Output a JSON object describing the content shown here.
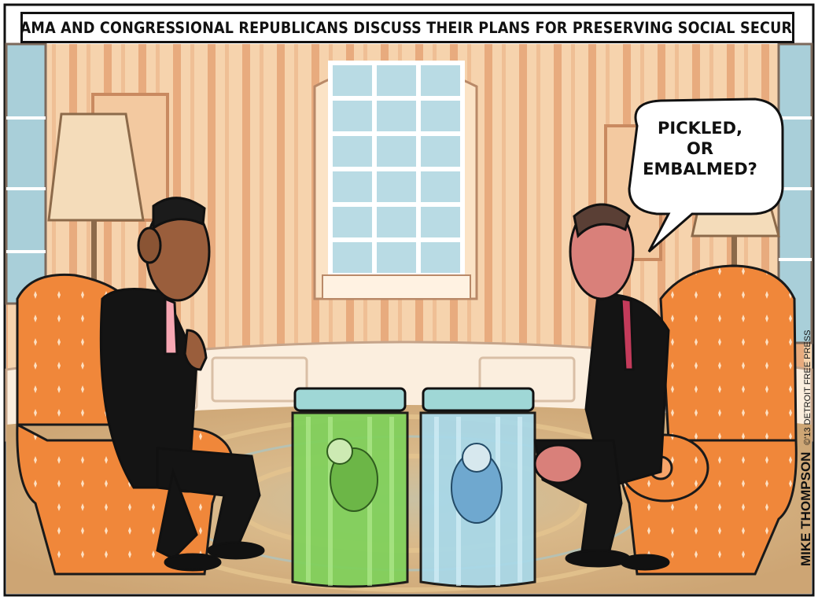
{
  "caption": "OBAMA AND CONGRESSIONAL REPUBLICANS DISCUSS THEIR PLANS FOR PRESERVING SOCIAL SECURITY",
  "speech_bubble": {
    "lines": [
      "PICKLED,",
      "OR",
      "EMBALMED?"
    ]
  },
  "signature": "MIKE THOMPSON",
  "credit": "©'13 DETROIT FREE PRESS",
  "colors": {
    "wall_stripe_light": "#f6d3ad",
    "wall_stripe_dark": "#e6a679",
    "chair_orange": "#f08a3a",
    "window_glass": "#b9dbe4",
    "carpet": "#d6b58a",
    "jar_green": "#8fd86a",
    "jar_blue": "#a9d9e8"
  }
}
